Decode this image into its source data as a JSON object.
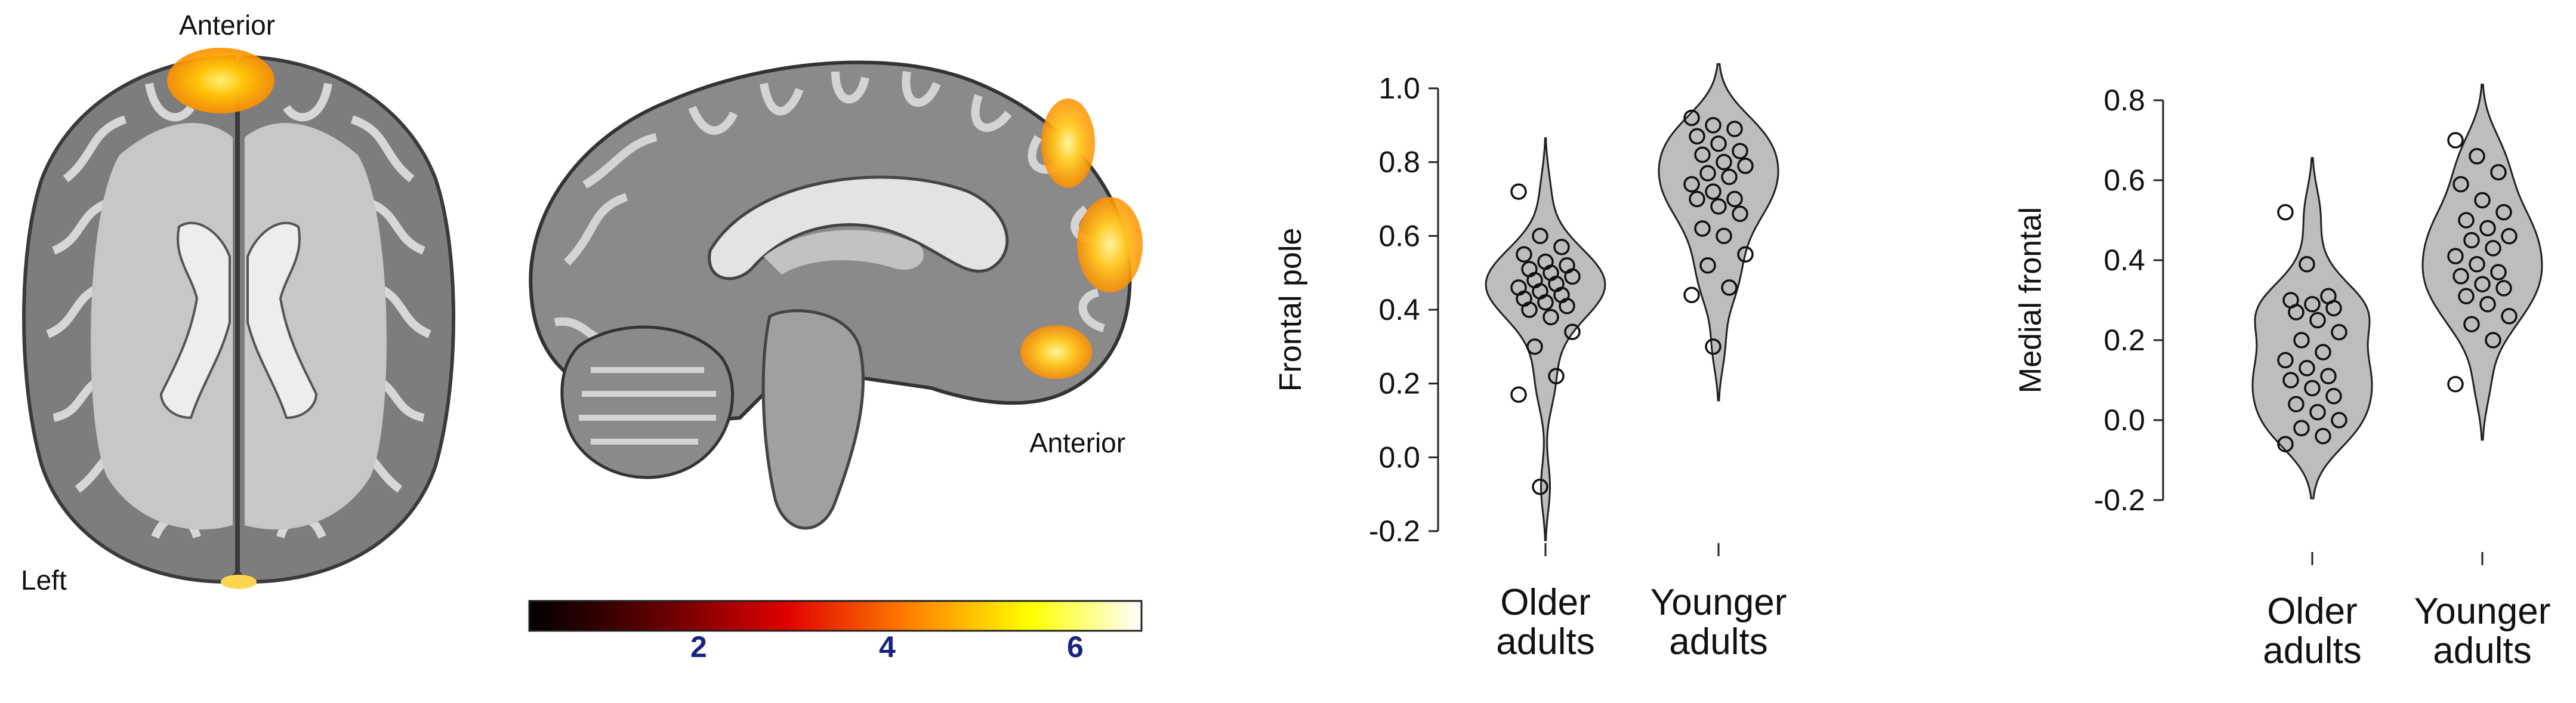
{
  "brain": {
    "axial_label_top": "Anterior",
    "axial_label_side": "Left",
    "sagittal_label": "Anterior",
    "colorbar_ticks": [
      "2",
      "4",
      "6"
    ],
    "colors": {
      "tissue": "#8f8f8f",
      "tissue_light": "#c9c9c9",
      "ventricle": "#e6e6e6",
      "activation_hot": "#ffcc00",
      "activation_warm": "#ff8c00"
    }
  },
  "chart_data": [
    {
      "type": "violin",
      "ylabel": "Frontal pole",
      "xlabel": "",
      "categories": [
        "Older\nadults",
        "Younger\nadults"
      ],
      "ylim": [
        -0.2,
        1.0
      ],
      "yticks": [
        "-0.2",
        "0.0",
        "0.2",
        "0.4",
        "0.6",
        "0.8",
        "1.0"
      ],
      "fill": "#bdbdbd",
      "series": [
        {
          "values": [
            0.72,
            0.6,
            0.57,
            0.55,
            0.53,
            0.52,
            0.51,
            0.5,
            0.49,
            0.48,
            0.47,
            0.46,
            0.45,
            0.44,
            0.43,
            0.42,
            0.41,
            0.4,
            0.38,
            0.34,
            0.3,
            0.22,
            0.17,
            -0.08
          ]
        },
        {
          "values": [
            0.92,
            0.9,
            0.89,
            0.87,
            0.85,
            0.83,
            0.82,
            0.8,
            0.79,
            0.77,
            0.76,
            0.74,
            0.72,
            0.7,
            0.7,
            0.68,
            0.66,
            0.62,
            0.6,
            0.55,
            0.52,
            0.46,
            0.44,
            0.3
          ]
        }
      ]
    },
    {
      "type": "violin",
      "ylabel": "Medial frontal",
      "xlabel": "",
      "categories": [
        "Older\nadults",
        "Younger\nadults"
      ],
      "ylim": [
        -0.2,
        0.8
      ],
      "yticks": [
        "-0.2",
        "0.0",
        "0.2",
        "0.4",
        "0.6",
        "0.8"
      ],
      "fill": "#bdbdbd",
      "series": [
        {
          "values": [
            0.52,
            0.39,
            0.31,
            0.3,
            0.29,
            0.28,
            0.27,
            0.25,
            0.22,
            0.2,
            0.17,
            0.15,
            0.13,
            0.11,
            0.1,
            0.08,
            0.06,
            0.04,
            0.02,
            0.0,
            -0.02,
            -0.04,
            -0.06
          ]
        },
        {
          "values": [
            0.7,
            0.66,
            0.62,
            0.59,
            0.55,
            0.52,
            0.5,
            0.48,
            0.46,
            0.45,
            0.43,
            0.41,
            0.39,
            0.37,
            0.36,
            0.34,
            0.33,
            0.31,
            0.29,
            0.26,
            0.24,
            0.2,
            0.09
          ]
        }
      ]
    }
  ]
}
